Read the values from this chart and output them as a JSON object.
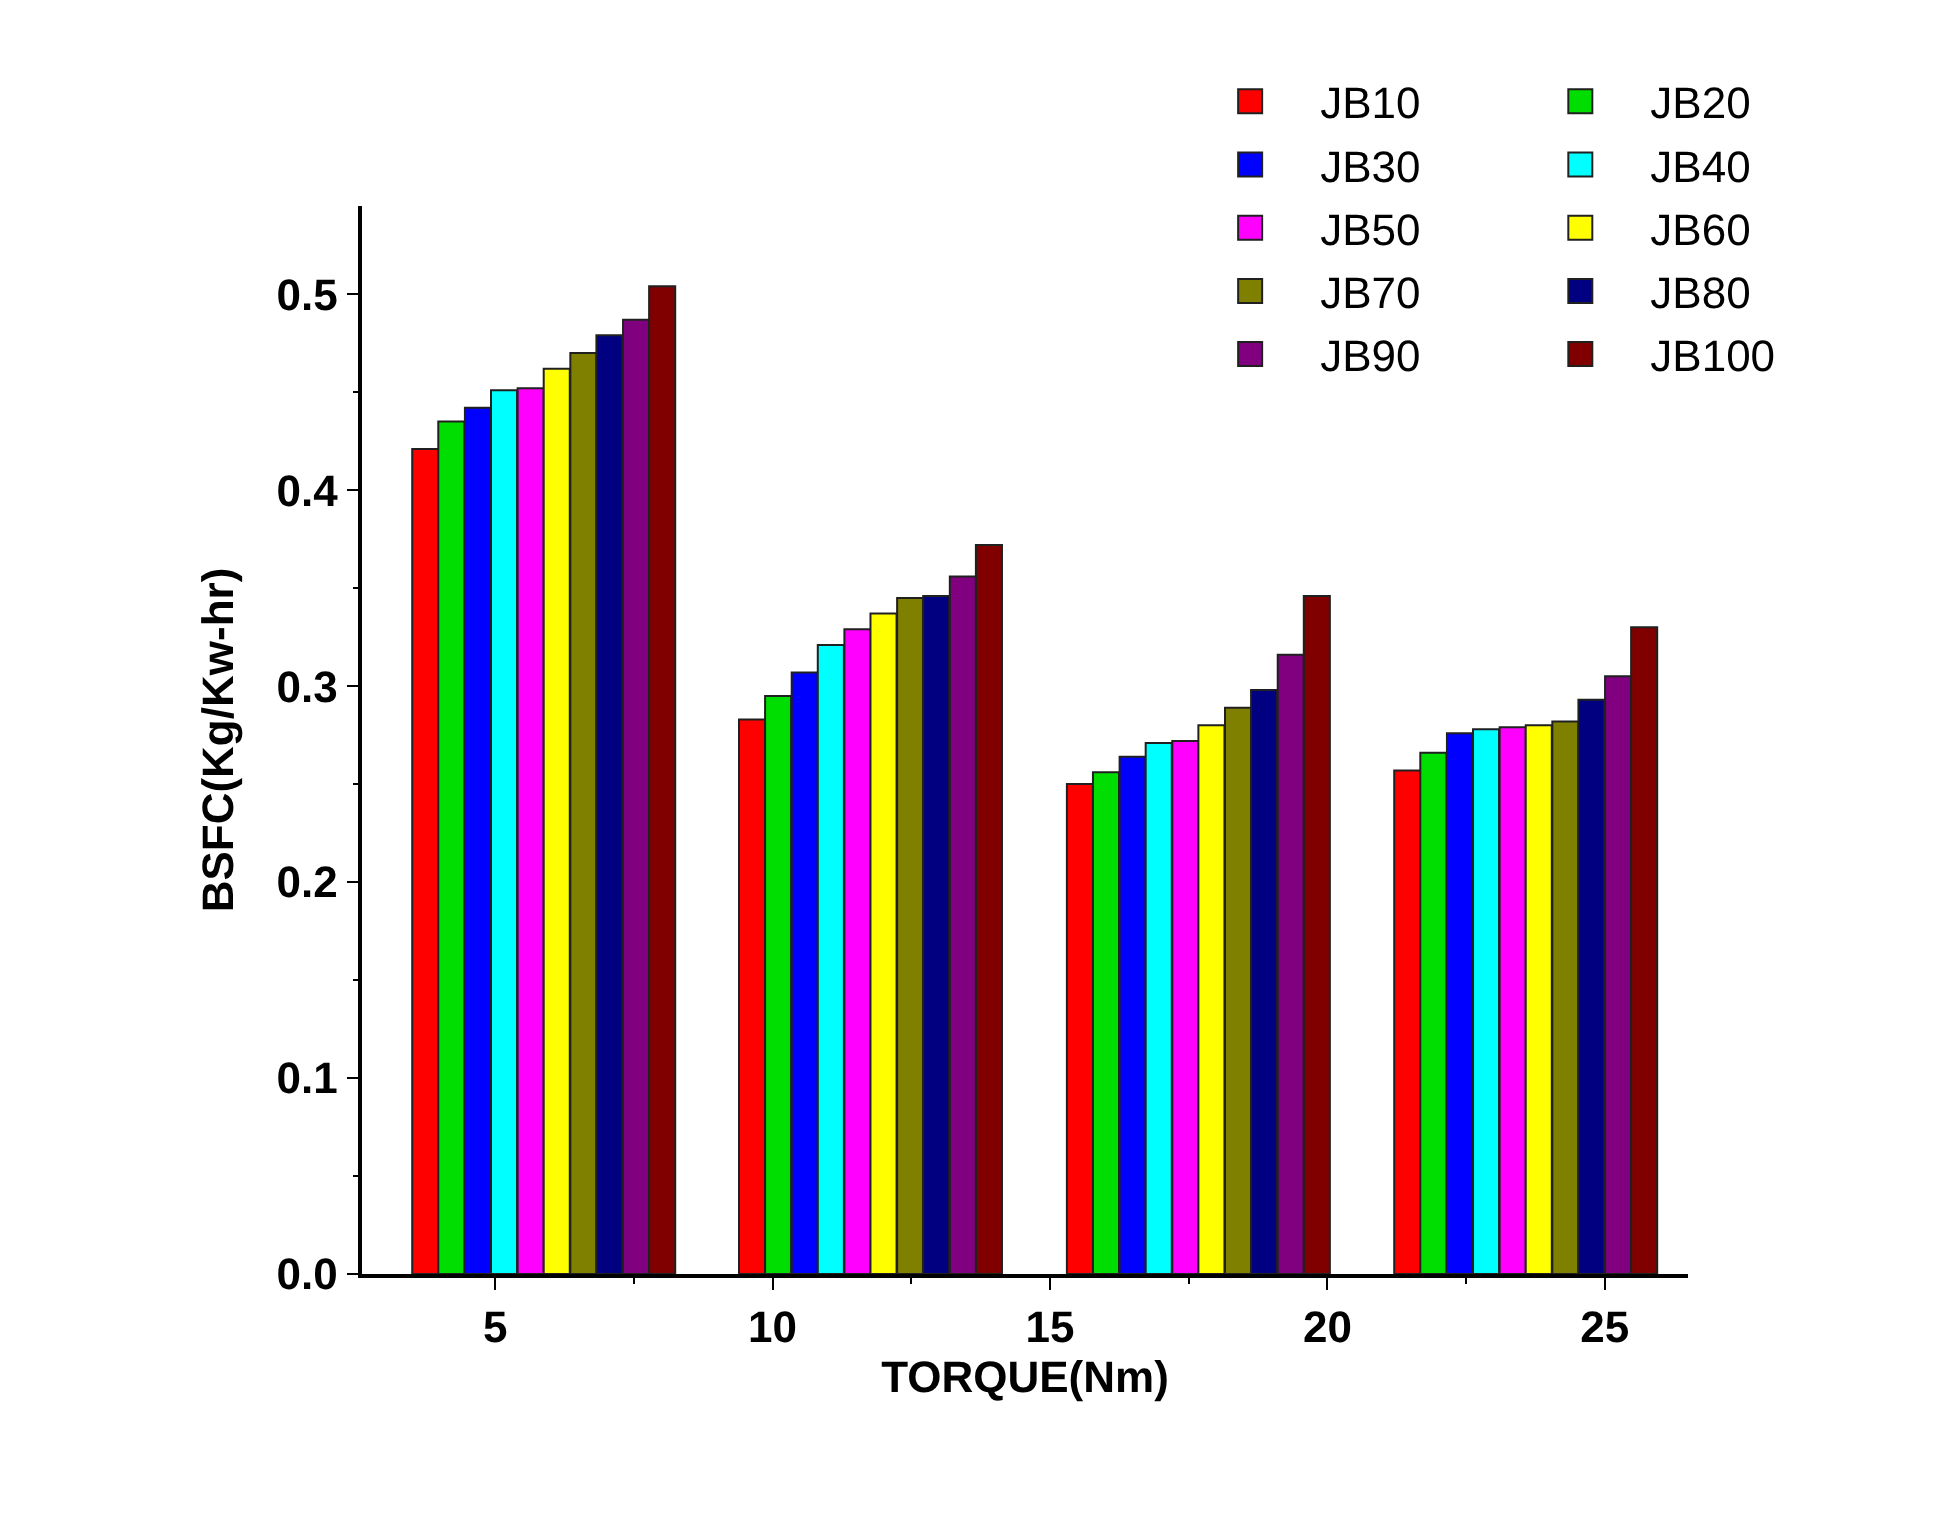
{
  "chart_data": {
    "type": "bar",
    "xlabel": "TORQUE(Nm)",
    "ylabel": "BSFC(Kg/Kw-hr)",
    "xlim": [
      2.6,
      26.5
    ],
    "xticks": [
      5,
      10,
      15,
      20,
      25
    ],
    "ylim": [
      0,
      0.545
    ],
    "yticks": [
      {
        "value": 0,
        "label": "0.0"
      },
      0.1,
      0.2,
      0.3,
      0.4,
      0.5
    ],
    "legend": "top right",
    "series": [
      {
        "name": "JB10",
        "color": "#ff0000",
        "x": [
          3.74,
          9.63,
          15.54,
          21.44
        ],
        "values": [
          0.421,
          0.283,
          0.25,
          0.257
        ]
      },
      {
        "name": "JB20",
        "color": "#00dd00",
        "x": [
          4.21,
          10.1,
          16.01,
          21.91
        ],
        "values": [
          0.435,
          0.295,
          0.256,
          0.266
        ]
      },
      {
        "name": "JB30",
        "color": "#0000ff",
        "x": [
          4.69,
          10.58,
          16.49,
          22.39
        ],
        "values": [
          0.442,
          0.307,
          0.264,
          0.276
        ]
      },
      {
        "name": "JB40",
        "color": "#00ffff",
        "x": [
          5.16,
          11.05,
          16.96,
          22.86
        ],
        "values": [
          0.451,
          0.321,
          0.271,
          0.278
        ]
      },
      {
        "name": "JB50",
        "color": "#ff00ff",
        "x": [
          5.64,
          11.53,
          17.44,
          23.34
        ],
        "values": [
          0.452,
          0.329,
          0.272,
          0.279
        ]
      },
      {
        "name": "JB60",
        "color": "#ffff00",
        "x": [
          6.11,
          12.0,
          17.91,
          23.81
        ],
        "values": [
          0.462,
          0.337,
          0.28,
          0.28
        ]
      },
      {
        "name": "JB70",
        "color": "#808000",
        "x": [
          6.59,
          12.48,
          18.39,
          24.29
        ],
        "values": [
          0.47,
          0.345,
          0.289,
          0.282
        ]
      },
      {
        "name": "JB80",
        "color": "#000080",
        "x": [
          7.06,
          12.95,
          18.86,
          24.76
        ],
        "values": [
          0.479,
          0.346,
          0.298,
          0.293
        ]
      },
      {
        "name": "JB90",
        "color": "#800080",
        "x": [
          7.54,
          13.43,
          19.34,
          25.24
        ],
        "values": [
          0.487,
          0.356,
          0.316,
          0.305
        ]
      },
      {
        "name": "JB100",
        "color": "#800000",
        "x": [
          8.01,
          13.9,
          19.81,
          25.71
        ],
        "values": [
          0.504,
          0.372,
          0.346,
          0.33
        ]
      }
    ]
  }
}
